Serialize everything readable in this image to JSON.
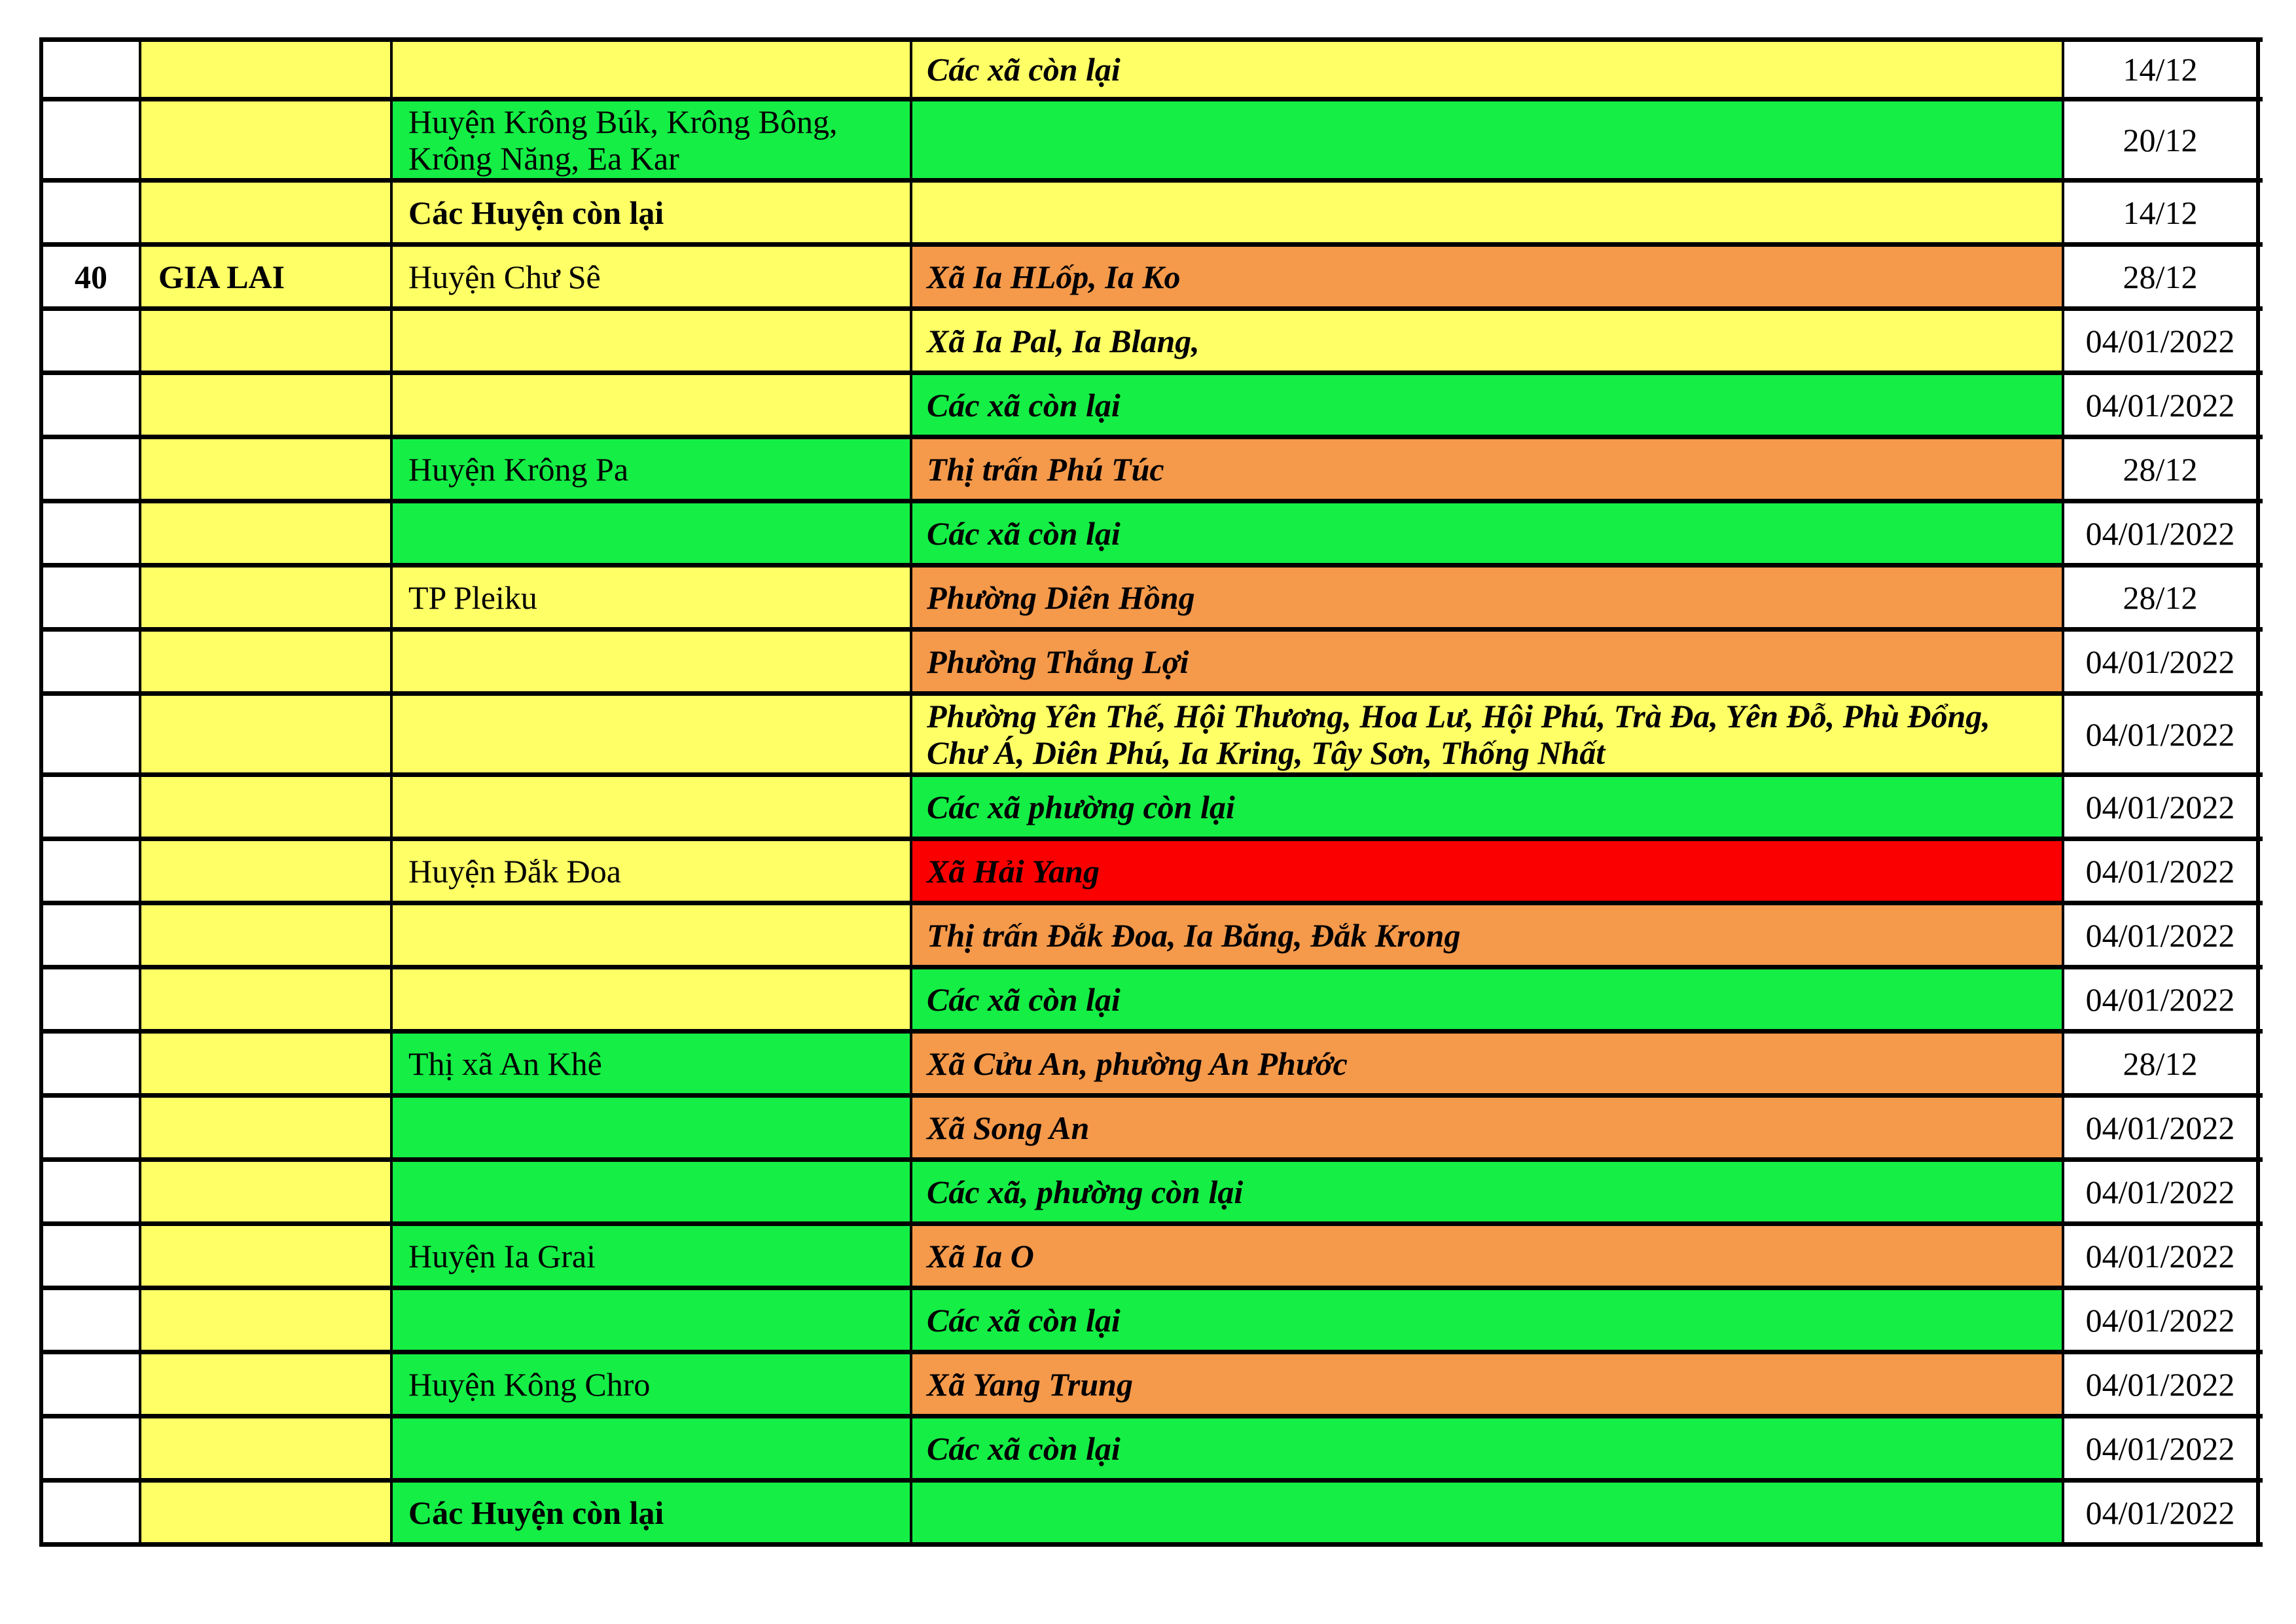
{
  "colors": {
    "yellow": "#FFFF66",
    "green": "#14EE45",
    "orange": "#F5994B",
    "red": "#FB0000",
    "white": "#FFFFFF",
    "border": "#000000",
    "text": "#000000"
  },
  "table": {
    "stt_bg": "white",
    "province_bg": "yellow",
    "date_bg": "white",
    "rows": [
      {
        "stt": "",
        "province": "",
        "district": "",
        "district_bg": "yellow",
        "district_bold": false,
        "commune": "Các xã còn lại",
        "commune_bg": "yellow",
        "date": "14/12",
        "first": true,
        "tall": false
      },
      {
        "stt": "",
        "province": "",
        "district": "Huyện Krông Búk, Krông Bông, Krông Năng, Ea Kar",
        "district_bg": "green",
        "district_bold": false,
        "commune": "",
        "commune_bg": "green",
        "date": "20/12",
        "first": false,
        "tall": true
      },
      {
        "stt": "",
        "province": "",
        "district": "Các Huyện còn lại",
        "district_bg": "yellow",
        "district_bold": true,
        "commune": "",
        "commune_bg": "yellow",
        "date": "14/12",
        "first": false,
        "tall": false
      },
      {
        "stt": "40",
        "province": "GIA LAI",
        "district": "Huyện Chư Sê",
        "district_bg": "yellow",
        "district_bold": false,
        "commune": "Xã Ia HLốp, Ia Ko",
        "commune_bg": "orange",
        "date": "28/12",
        "first": false,
        "tall": false
      },
      {
        "stt": "",
        "province": "",
        "district": "",
        "district_bg": "yellow",
        "district_bold": false,
        "commune": "Xã Ia Pal, Ia Blang,",
        "commune_bg": "yellow",
        "date": "04/01/2022",
        "first": false,
        "tall": false
      },
      {
        "stt": "",
        "province": "",
        "district": "",
        "district_bg": "yellow",
        "district_bold": false,
        "commune": "Các xã còn lại",
        "commune_bg": "green",
        "date": "04/01/2022",
        "first": false,
        "tall": false
      },
      {
        "stt": "",
        "province": "",
        "district": "Huyện Krông Pa",
        "district_bg": "green",
        "district_bold": false,
        "commune": "Thị trấn Phú Túc",
        "commune_bg": "orange",
        "date": "28/12",
        "first": false,
        "tall": false
      },
      {
        "stt": "",
        "province": "",
        "district": "",
        "district_bg": "green",
        "district_bold": false,
        "commune": "Các xã còn lại",
        "commune_bg": "green",
        "date": "04/01/2022",
        "first": false,
        "tall": false
      },
      {
        "stt": "",
        "province": "",
        "district": "TP Pleiku",
        "district_bg": "yellow",
        "district_bold": false,
        "commune": "Phường Diên Hồng",
        "commune_bg": "orange",
        "date": "28/12",
        "first": false,
        "tall": false
      },
      {
        "stt": "",
        "province": "",
        "district": "",
        "district_bg": "yellow",
        "district_bold": false,
        "commune": "Phường Thắng Lợi",
        "commune_bg": "orange",
        "date": "04/01/2022",
        "first": false,
        "tall": false
      },
      {
        "stt": "",
        "province": "",
        "district": "",
        "district_bg": "yellow",
        "district_bold": false,
        "commune": "Phường Yên Thế, Hội Thương, Hoa Lư, Hội Phú, Trà Đa, Yên Đỗ, Phù Đổng, Chư Á, Diên Phú, Ia Kring, Tây Sơn, Thống Nhất",
        "commune_bg": "yellow",
        "date": "04/01/2022",
        "first": false,
        "tall": true
      },
      {
        "stt": "",
        "province": "",
        "district": "",
        "district_bg": "yellow",
        "district_bold": false,
        "commune": "Các xã phường còn lại",
        "commune_bg": "green",
        "date": "04/01/2022",
        "first": false,
        "tall": false
      },
      {
        "stt": "",
        "province": "",
        "district": "Huyện Đắk Đoa",
        "district_bg": "yellow",
        "district_bold": false,
        "commune": "Xã Hải Yang",
        "commune_bg": "red",
        "date": "04/01/2022",
        "first": false,
        "tall": false
      },
      {
        "stt": "",
        "province": "",
        "district": "",
        "district_bg": "yellow",
        "district_bold": false,
        "commune": "Thị trấn Đắk Đoa, Ia Băng, Đắk Krong",
        "commune_bg": "orange",
        "date": "04/01/2022",
        "first": false,
        "tall": false
      },
      {
        "stt": "",
        "province": "",
        "district": "",
        "district_bg": "yellow",
        "district_bold": false,
        "commune": "Các xã còn lại",
        "commune_bg": "green",
        "date": "04/01/2022",
        "first": false,
        "tall": false
      },
      {
        "stt": "",
        "province": "",
        "district": "Thị xã An Khê",
        "district_bg": "green",
        "district_bold": false,
        "commune": "Xã Cửu An, phường An Phước",
        "commune_bg": "orange",
        "date": "28/12",
        "first": false,
        "tall": false
      },
      {
        "stt": "",
        "province": "",
        "district": "",
        "district_bg": "green",
        "district_bold": false,
        "commune": "Xã Song An",
        "commune_bg": "orange",
        "date": "04/01/2022",
        "first": false,
        "tall": false
      },
      {
        "stt": "",
        "province": "",
        "district": "",
        "district_bg": "green",
        "district_bold": false,
        "commune": "Các xã, phường còn lại",
        "commune_bg": "green",
        "date": "04/01/2022",
        "first": false,
        "tall": false
      },
      {
        "stt": "",
        "province": "",
        "district": "Huyện Ia Grai",
        "district_bg": "green",
        "district_bold": false,
        "commune": "Xã Ia O",
        "commune_bg": "orange",
        "date": "04/01/2022",
        "first": false,
        "tall": false
      },
      {
        "stt": "",
        "province": "",
        "district": "",
        "district_bg": "green",
        "district_bold": false,
        "commune": "Các xã còn lại",
        "commune_bg": "green",
        "date": "04/01/2022",
        "first": false,
        "tall": false
      },
      {
        "stt": "",
        "province": "",
        "district": "Huyện Kông Chro",
        "district_bg": "green",
        "district_bold": false,
        "commune": "Xã Yang Trung",
        "commune_bg": "orange",
        "date": "04/01/2022",
        "first": false,
        "tall": false
      },
      {
        "stt": "",
        "province": "",
        "district": "",
        "district_bg": "green",
        "district_bold": false,
        "commune": "Các xã còn lại",
        "commune_bg": "green",
        "date": "04/01/2022",
        "first": false,
        "tall": false
      },
      {
        "stt": "",
        "province": "",
        "district": "Các Huyện còn lại",
        "district_bg": "green",
        "district_bold": true,
        "commune": "",
        "commune_bg": "green",
        "date": "04/01/2022",
        "first": false,
        "tall": false
      }
    ]
  }
}
